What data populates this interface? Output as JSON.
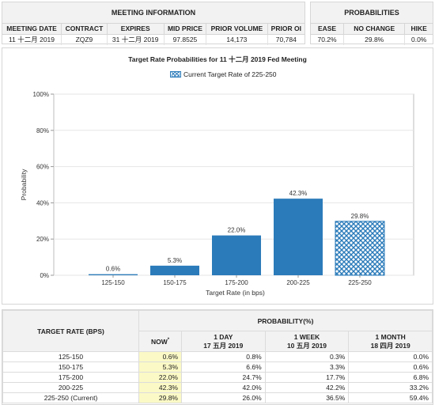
{
  "meeting_info": {
    "header": "MEETING INFORMATION",
    "columns": [
      "MEETING DATE",
      "CONTRACT",
      "EXPIRES",
      "MID PRICE",
      "PRIOR VOLUME",
      "PRIOR OI"
    ],
    "row": [
      "11 十二月 2019",
      "ZQZ9",
      "31 十二月 2019",
      "97.8525",
      "14,173",
      "70,784"
    ]
  },
  "probabilities": {
    "header": "PROBABILITIES",
    "columns": [
      "EASE",
      "NO CHANGE",
      "HIKE"
    ],
    "row": [
      "70.2%",
      "29.8%",
      "0.0%"
    ]
  },
  "chart": {
    "title": "Target Rate Probabilities for 11 十二月 2019 Fed Meeting",
    "legend_label": "Current Target Rate of 225-250",
    "colors": {
      "bar": "#2b7bba",
      "current": "#2b7bba",
      "grid": "#e6e6e6"
    }
  },
  "chart_data": {
    "type": "bar",
    "title": "Target Rate Probabilities for 11 十二月 2019 Fed Meeting",
    "xlabel": "Target Rate (in bps)",
    "ylabel": "Probability",
    "categories": [
      "125-150",
      "150-175",
      "175-200",
      "200-225",
      "225-250"
    ],
    "values": [
      0.6,
      5.3,
      22.0,
      42.3,
      29.8
    ],
    "value_labels": [
      "0.6%",
      "5.3%",
      "22.0%",
      "42.3%",
      "29.8%"
    ],
    "yticks": [
      "0%",
      "20%",
      "40%",
      "60%",
      "80%",
      "100%"
    ],
    "ylim": [
      0,
      100
    ],
    "highlight_category": "225-250",
    "grid": true
  },
  "prob_table": {
    "header_left": "TARGET RATE (BPS)",
    "header_group": "PROBABILITY(%)",
    "col_now": "NOW",
    "col_now_mark": "*",
    "col_1day": [
      "1 DAY",
      "17 五月 2019"
    ],
    "col_1week": [
      "1 WEEK",
      "10 五月 2019"
    ],
    "col_1month": [
      "1 MONTH",
      "18 四月 2019"
    ],
    "rows": [
      [
        "125-150",
        "0.6%",
        "0.8%",
        "0.3%",
        "0.0%"
      ],
      [
        "150-175",
        "5.3%",
        "6.6%",
        "3.3%",
        "0.6%"
      ],
      [
        "175-200",
        "22.0%",
        "24.7%",
        "17.7%",
        "6.8%"
      ],
      [
        "200-225",
        "42.3%",
        "42.0%",
        "42.2%",
        "33.2%"
      ],
      [
        "225-250 (Current)",
        "29.8%",
        "26.0%",
        "36.5%",
        "59.4%"
      ]
    ]
  }
}
